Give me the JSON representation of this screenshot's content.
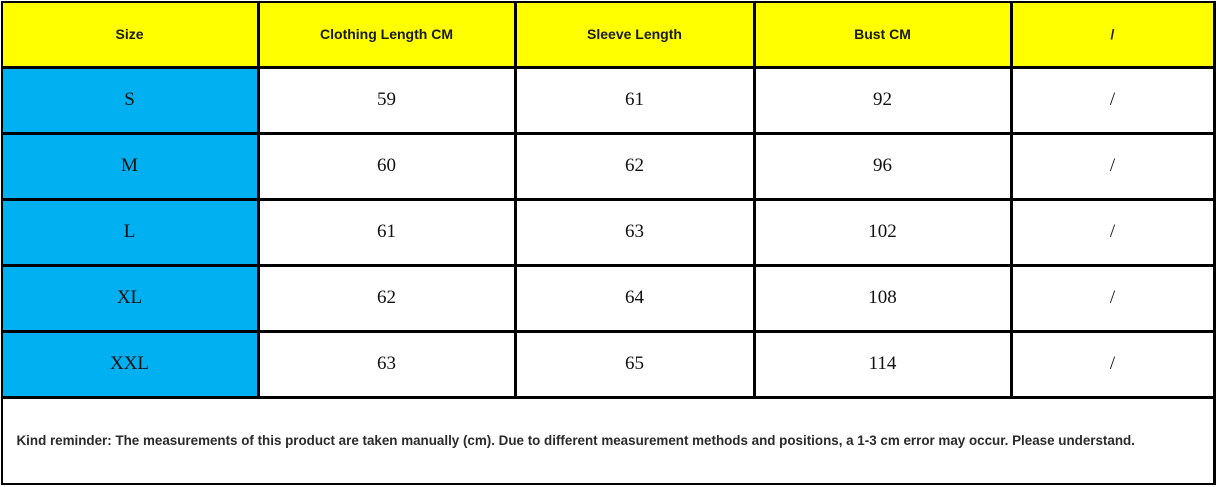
{
  "table": {
    "header": [
      "Size",
      "Clothing Length CM",
      "Sleeve Length",
      "Bust CM",
      "/"
    ],
    "rows": [
      [
        "S",
        59,
        61,
        92,
        "/"
      ],
      [
        "M",
        60,
        62,
        96,
        "/"
      ],
      [
        "L",
        61,
        63,
        102,
        "/"
      ],
      [
        "XL",
        62,
        64,
        108,
        "/"
      ],
      [
        "XXL",
        63,
        65,
        114,
        "/"
      ]
    ]
  },
  "note": "Kind reminder: The measurements of this product are taken manually (cm). Due to different measurement methods and positions, a 1-3 cm error may occur. Please understand."
}
